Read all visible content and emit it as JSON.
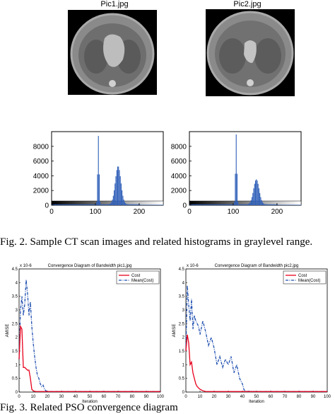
{
  "figure2": {
    "images": [
      {
        "title": "Pic1.jpg"
      },
      {
        "title": "Pic2.jpg"
      }
    ],
    "caption": "Fig. 2.   Sample CT scan images and related histograms in graylevel range."
  },
  "figure3": {
    "caption": "Fig. 3.   Related PSO convergence diagram"
  },
  "chart_data": [
    {
      "type": "bar",
      "xlim": [
        0,
        255
      ],
      "ylim": [
        0,
        10000
      ],
      "xticks": [
        "0",
        "100",
        "200"
      ],
      "yticks": [
        "0",
        "2000",
        "4000",
        "6000",
        "8000"
      ],
      "peaks": [
        {
          "x": 106,
          "value": 9300
        },
        {
          "x": 151,
          "value": 5200
        }
      ],
      "colors": {
        "bars": "#2f5fb8"
      }
    },
    {
      "type": "bar",
      "xlim": [
        0,
        255
      ],
      "ylim": [
        0,
        10000
      ],
      "xticks": [
        "0",
        "100",
        "200"
      ],
      "yticks": [
        "0",
        "2000",
        "4000",
        "6000",
        "8000"
      ],
      "peaks": [
        {
          "x": 106,
          "value": 9500
        },
        {
          "x": 152,
          "value": 3400
        }
      ],
      "colors": {
        "bars": "#2f5fb8"
      }
    },
    {
      "type": "line",
      "title": "Convergence Diagram of Bandwidth pic1.jpg",
      "xlabel": "Iteration",
      "ylabel": "AMISE",
      "exponent": "x 10-6",
      "xlim": [
        0,
        100
      ],
      "ylim": [
        0,
        4.5
      ],
      "xticks": [
        "0",
        "10",
        "20",
        "30",
        "40",
        "50",
        "60",
        "70",
        "80",
        "90",
        "100"
      ],
      "yticks": [
        "0",
        "0.5",
        "1",
        "1.5",
        "2",
        "2.5",
        "3",
        "3.5",
        "4",
        "4.5"
      ],
      "legend_position": "top-right",
      "series": [
        {
          "name": "Cost",
          "color": "#e8001c",
          "style": "solid",
          "x": [
            0,
            1,
            2,
            3,
            4,
            5,
            6,
            7,
            8,
            9,
            10,
            11,
            12,
            13,
            14,
            15,
            20,
            30,
            50,
            100
          ],
          "y": [
            1.2,
            2.4,
            2.3,
            0.9,
            0.9,
            0.85,
            0.8,
            0.8,
            0.5,
            0.1,
            0.05,
            0.03,
            0.02,
            0.02,
            0.02,
            0.02,
            0.02,
            0.02,
            0.02,
            0.02
          ]
        },
        {
          "name": "Mean(Cost)",
          "color": "#1f4fb0",
          "style": "dashdot",
          "x": [
            0,
            1,
            2,
            3,
            4,
            5,
            6,
            7,
            8,
            9,
            10,
            11,
            12,
            13,
            14,
            15,
            16,
            17,
            18,
            19,
            20,
            25,
            30,
            50,
            100
          ],
          "y": [
            1.2,
            3.0,
            3.5,
            2.8,
            3.2,
            4.1,
            3.6,
            2.8,
            3.3,
            2.4,
            1.8,
            1.3,
            0.9,
            0.6,
            0.5,
            0.3,
            0.2,
            0.25,
            0.1,
            0.05,
            0.02,
            0.02,
            0.02,
            0.02,
            0.02
          ]
        }
      ]
    },
    {
      "type": "line",
      "title": "Convergence Diagram of Bandwidth pic2.jpg",
      "xlabel": "Iteration",
      "ylabel": "AMISE",
      "exponent": "x 10-6",
      "xlim": [
        0,
        100
      ],
      "ylim": [
        0,
        4.5
      ],
      "xticks": [
        "0",
        "10",
        "20",
        "30",
        "40",
        "50",
        "60",
        "70",
        "80",
        "90",
        "100"
      ],
      "yticks": [
        "0",
        "0.5",
        "1",
        "1.5",
        "2",
        "2.5",
        "3",
        "3.5",
        "4",
        "4.5"
      ],
      "legend_position": "top-right",
      "series": [
        {
          "name": "Cost",
          "color": "#e8001c",
          "style": "solid",
          "x": [
            0,
            1,
            2,
            3,
            4,
            5,
            6,
            7,
            8,
            9,
            10,
            12,
            14,
            16,
            18,
            20,
            30,
            50,
            100
          ],
          "y": [
            1.5,
            2.1,
            1.8,
            1.0,
            1.1,
            0.7,
            0.5,
            0.3,
            0.2,
            0.15,
            0.1,
            0.05,
            0.02,
            0.02,
            0.02,
            0.02,
            0.02,
            0.02,
            0.02
          ]
        },
        {
          "name": "Mean(Cost)",
          "color": "#1f4fb0",
          "style": "dashdot",
          "x": [
            0,
            1,
            2,
            3,
            4,
            5,
            6,
            7,
            8,
            9,
            10,
            12,
            14,
            16,
            18,
            20,
            22,
            24,
            26,
            28,
            30,
            32,
            34,
            36,
            38,
            40,
            41,
            42,
            50,
            100
          ],
          "y": [
            1.5,
            3.9,
            3.2,
            2.6,
            3.4,
            2.3,
            2.8,
            2.6,
            2.5,
            2.4,
            2.1,
            2.6,
            2.2,
            1.7,
            2.0,
            1.6,
            1.0,
            1.3,
            0.9,
            1.2,
            1.0,
            1.3,
            0.7,
            1.0,
            0.5,
            0.3,
            0.1,
            0.03,
            0.02,
            0.02
          ]
        }
      ]
    }
  ]
}
